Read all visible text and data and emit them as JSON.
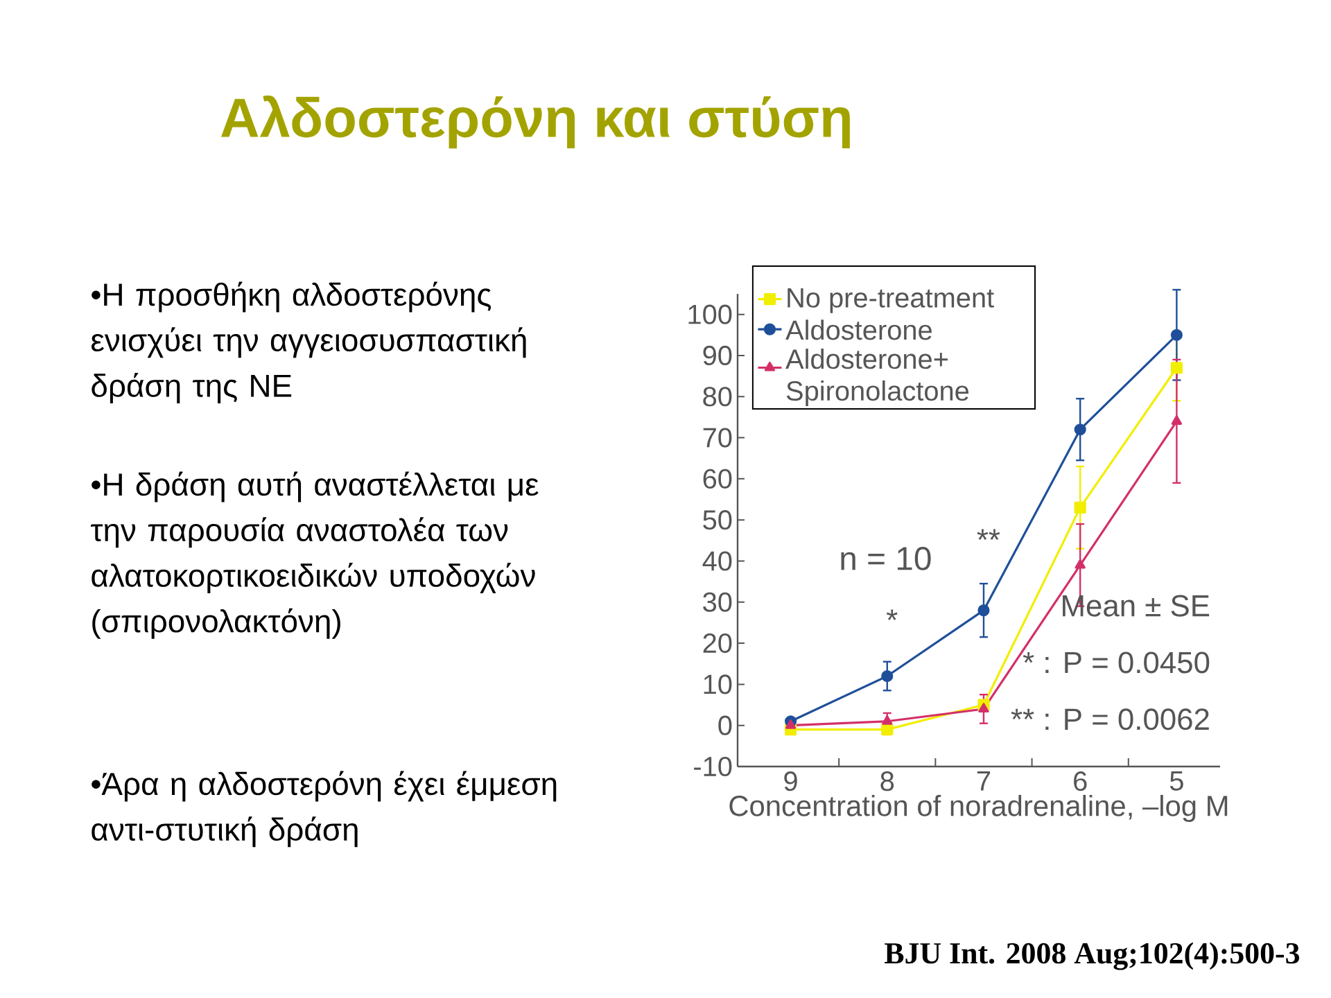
{
  "chart_data": {
    "type": "line",
    "title": "Αλδοστερόνη και στύση",
    "xlabel": "Concentration of noradrenaline, –log M",
    "categories": [
      "9",
      "8",
      "7",
      "6",
      "5"
    ],
    "ylim": [
      -10,
      105
    ],
    "yticks": [
      -10,
      0,
      10,
      20,
      30,
      40,
      50,
      60,
      70,
      80,
      90,
      100
    ],
    "legend": "top left",
    "series": [
      {
        "name": "No pre-treatment",
        "color": "#f2ee00",
        "marker": "square",
        "values": [
          -1,
          -1,
          5,
          53,
          87
        ],
        "errors": [
          null,
          null,
          null,
          10,
          8
        ]
      },
      {
        "name": "Aldosterone",
        "color": "#1f4f9a",
        "marker": "circle",
        "values": [
          1,
          12,
          28,
          72,
          95
        ],
        "errors": [
          null,
          3.5,
          6.5,
          7.5,
          11
        ]
      },
      {
        "name": "Aldosterone+ Spironolactone",
        "color": "#d42f6a",
        "marker": "triangle",
        "values": [
          0,
          1,
          4,
          39,
          74
        ],
        "errors": [
          null,
          2,
          3.5,
          10,
          15
        ]
      }
    ],
    "annotations": [
      "•Η προσθήκη αλδοστερόνης ενισχύει την αγγειοσυσπαστική δράση της ΝΕ",
      "•Η δράση αυτή αναστέλλεται με την παρουσία αναστολέα των αλατοκορτικοειδικών υποδοχών (σπιρονολακτόνη)",
      "•Άρα η αλδοστερόνη έχει έμμεση αντι-στυτική δράση",
      "n = 10",
      "*",
      "**",
      "Mean ± SE",
      "* : P = 0.0450",
      "** : P = 0.0062",
      "BJU Int. 2008 Aug;102(4):500-3"
    ]
  }
}
